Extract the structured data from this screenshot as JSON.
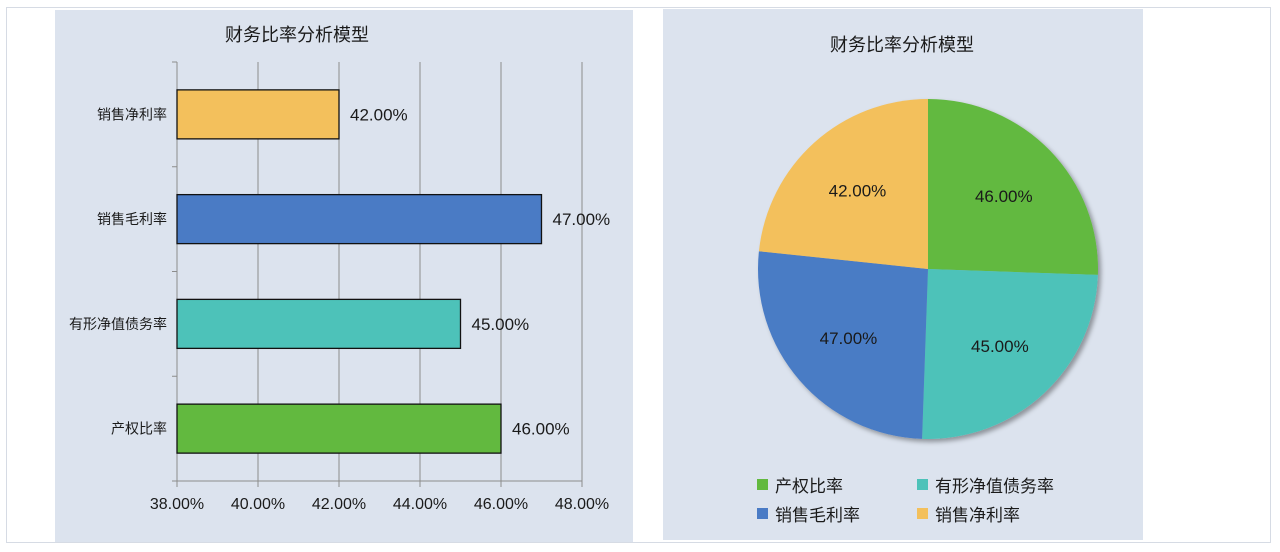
{
  "bar_chart": {
    "title": "财务比率分析模型"
  },
  "pie_chart": {
    "title": "财务比率分析模型"
  },
  "legend": [
    {
      "label": "产权比率",
      "color": "#62b93f"
    },
    {
      "label": "有形净值债务率",
      "color": "#4dc2b9"
    },
    {
      "label": "销售毛利率",
      "color": "#4a7bc5"
    },
    {
      "label": "销售净利率",
      "color": "#f3c05c"
    }
  ],
  "chart_data": [
    {
      "type": "bar",
      "orientation": "horizontal",
      "title": "财务比率分析模型",
      "categories": [
        "产权比率",
        "有形净值债务率",
        "销售毛利率",
        "销售净利率"
      ],
      "values": [
        46.0,
        45.0,
        47.0,
        42.0
      ],
      "data_labels": [
        "46.00%",
        "45.00%",
        "47.00%",
        "42.00%"
      ],
      "colors": [
        "#62b93f",
        "#4dc2b9",
        "#4a7bc5",
        "#f3c05c"
      ],
      "xlabel": "",
      "ylabel": "",
      "xlim": [
        38,
        48
      ],
      "x_ticks": [
        "38.00%",
        "40.00%",
        "42.00%",
        "44.00%",
        "46.00%",
        "48.00%"
      ],
      "grid": "vertical",
      "legend": "none"
    },
    {
      "type": "pie",
      "title": "财务比率分析模型",
      "categories": [
        "产权比率",
        "有形净值债务率",
        "销售毛利率",
        "销售净利率"
      ],
      "values": [
        46.0,
        45.0,
        47.0,
        42.0
      ],
      "data_labels": [
        "46.00%",
        "45.00%",
        "47.00%",
        "42.00%"
      ],
      "colors": [
        "#62b93f",
        "#4dc2b9",
        "#4a7bc5",
        "#f3c05c"
      ],
      "legend_position": "bottom"
    }
  ]
}
